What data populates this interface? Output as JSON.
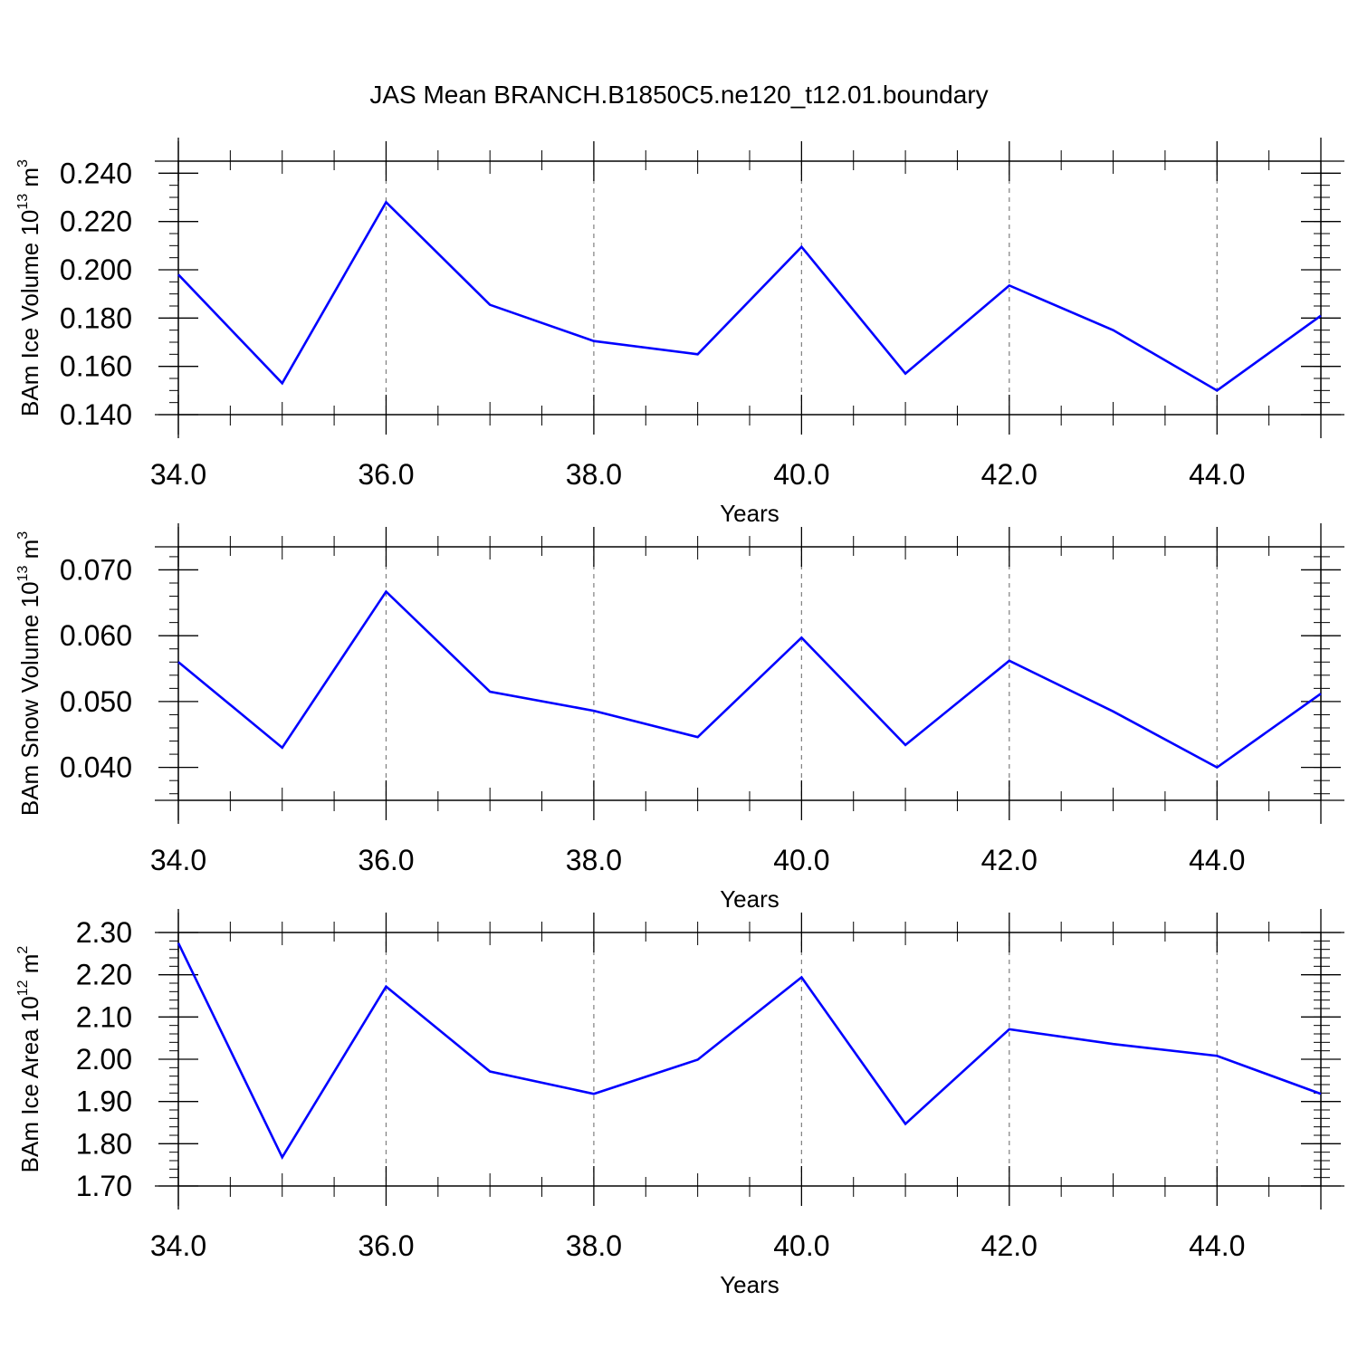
{
  "title": "JAS Mean BRANCH.B1850C5.ne120_t12.01.boundary",
  "colors": {
    "series": "#0000ff",
    "axes": "#000000",
    "grid": "#7f7f7f"
  },
  "chart_data": [
    {
      "type": "line",
      "grid": "vertical dashed at major x ticks",
      "xlabel": "Years",
      "ylabel": {
        "text": "BAm Ice Volume 10",
        "exp": "13",
        "unit": " m",
        "unit_exp": "3"
      },
      "xlim": [
        34,
        45
      ],
      "ylim": [
        0.14,
        0.245
      ],
      "x_ticks": [
        34,
        36,
        38,
        40,
        42,
        44
      ],
      "x_tick_labels": [
        "34.0",
        "36.0",
        "38.0",
        "40.0",
        "42.0",
        "44.0"
      ],
      "y_ticks": [
        0.14,
        0.16,
        0.18,
        0.2,
        0.22,
        0.24
      ],
      "y_tick_labels": [
        "0.140",
        "0.160",
        "0.180",
        "0.200",
        "0.220",
        "0.240"
      ],
      "y_minor_step": 0.005,
      "x": [
        34,
        35,
        36,
        37,
        38,
        39,
        40,
        41,
        42,
        43,
        44,
        45
      ],
      "series": [
        {
          "values": [
            0.198,
            0.153,
            0.228,
            0.1855,
            0.1705,
            0.165,
            0.2095,
            0.157,
            0.1935,
            0.175,
            0.15,
            0.181
          ]
        }
      ]
    },
    {
      "type": "line",
      "grid": "vertical dashed at major x ticks",
      "xlabel": "Years",
      "ylabel": {
        "text": "BAm Snow Volume 10",
        "exp": "13",
        "unit": " m",
        "unit_exp": "3"
      },
      "xlim": [
        34,
        45
      ],
      "ylim": [
        0.035,
        0.0735
      ],
      "x_ticks": [
        34,
        36,
        38,
        40,
        42,
        44
      ],
      "x_tick_labels": [
        "34.0",
        "36.0",
        "38.0",
        "40.0",
        "42.0",
        "44.0"
      ],
      "y_ticks": [
        0.04,
        0.05,
        0.06,
        0.07
      ],
      "y_tick_labels": [
        "0.040",
        "0.050",
        "0.060",
        "0.070"
      ],
      "y_minor_step": 0.002,
      "x": [
        34,
        35,
        36,
        37,
        38,
        39,
        40,
        41,
        42,
        43,
        44,
        45
      ],
      "series": [
        {
          "values": [
            0.056,
            0.043,
            0.0667,
            0.0515,
            0.0486,
            0.0446,
            0.0597,
            0.0434,
            0.0562,
            0.0485,
            0.04,
            0.0512
          ]
        }
      ]
    },
    {
      "type": "line",
      "grid": "vertical dashed at major x ticks",
      "xlabel": "Years",
      "ylabel": {
        "text": "BAm Ice Area 10",
        "exp": "12",
        "unit": " m",
        "unit_exp": "2"
      },
      "xlim": [
        34,
        45
      ],
      "ylim": [
        1.7,
        2.3
      ],
      "x_ticks": [
        34,
        36,
        38,
        40,
        42,
        44
      ],
      "x_tick_labels": [
        "34.0",
        "36.0",
        "38.0",
        "40.0",
        "42.0",
        "44.0"
      ],
      "y_ticks": [
        1.7,
        1.8,
        1.9,
        2.0,
        2.1,
        2.2,
        2.3
      ],
      "y_tick_labels": [
        "1.70",
        "1.80",
        "1.90",
        "2.00",
        "2.10",
        "2.20",
        "2.30"
      ],
      "y_minor_step": 0.02,
      "x": [
        34,
        35,
        36,
        37,
        38,
        39,
        40,
        41,
        42,
        43,
        44,
        45
      ],
      "series": [
        {
          "values": [
            2.275,
            1.768,
            2.172,
            1.971,
            1.918,
            1.999,
            2.194,
            1.847,
            2.071,
            2.036,
            2.008,
            1.918
          ]
        }
      ]
    }
  ]
}
